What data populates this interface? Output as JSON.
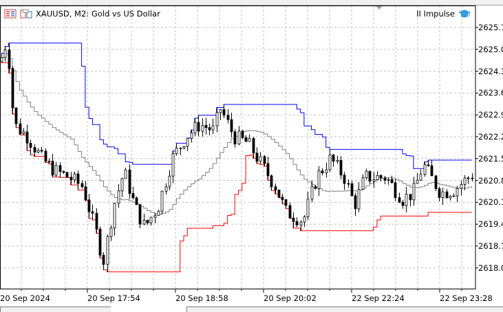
{
  "header": {
    "symbol_title": "XAUUSD, M2:  Gold vs US Dollar",
    "indicator": "II Impulse",
    "icons": [
      "trade-panel-icon",
      "depth-of-market-icon",
      "graduation-cap-icon"
    ]
  },
  "price_axis": [
    "2625.7",
    "2625.0",
    "2624.3",
    "2623.6",
    "2622.9",
    "2622.2",
    "2621.5",
    "2620.8",
    "2620.1",
    "2619.4",
    "2618.7",
    "2618.0"
  ],
  "time_axis": [
    "20 Sep 2024",
    "20 Sep 17:54",
    "20 Sep 18:58",
    "20 Sep 20:02",
    "22 Sep 22:24",
    "22 Sep 23:28"
  ],
  "colors": {
    "upper": "#0000ff",
    "lower": "#ff0000",
    "middle": "#808080",
    "candle": "#000000",
    "grid": "#c0c0c0"
  },
  "chart_data": {
    "type": "candlestick",
    "close_path": [
      [
        0,
        2624.6
      ],
      [
        10,
        2625.3
      ],
      [
        20,
        2622.6
      ],
      [
        40,
        2622.2
      ],
      [
        60,
        2621.5
      ],
      [
        80,
        2621.1
      ],
      [
        100,
        2620.9
      ],
      [
        120,
        2620.6
      ],
      [
        140,
        2619.1
      ],
      [
        150,
        2618.2
      ],
      [
        165,
        2620.0
      ],
      [
        180,
        2621.1
      ],
      [
        195,
        2620.0
      ],
      [
        210,
        2619.3
      ],
      [
        230,
        2620.0
      ],
      [
        250,
        2621.5
      ],
      [
        270,
        2622.2
      ],
      [
        290,
        2622.6
      ],
      [
        310,
        2622.4
      ],
      [
        320,
        2623.1
      ],
      [
        340,
        2622.2
      ],
      [
        360,
        2622.0
      ],
      [
        380,
        2621.3
      ],
      [
        400,
        2620.6
      ],
      [
        415,
        2619.8
      ],
      [
        440,
        2619.5
      ],
      [
        460,
        2620.9
      ],
      [
        480,
        2621.5
      ],
      [
        500,
        2620.9
      ],
      [
        515,
        2620.0
      ],
      [
        530,
        2620.9
      ],
      [
        560,
        2620.9
      ],
      [
        585,
        2620.2
      ],
      [
        600,
        2620.4
      ],
      [
        615,
        2621.3
      ],
      [
        640,
        2620.4
      ],
      [
        660,
        2620.5
      ],
      [
        686,
        2621.0
      ]
    ],
    "channel_period": 20
  }
}
